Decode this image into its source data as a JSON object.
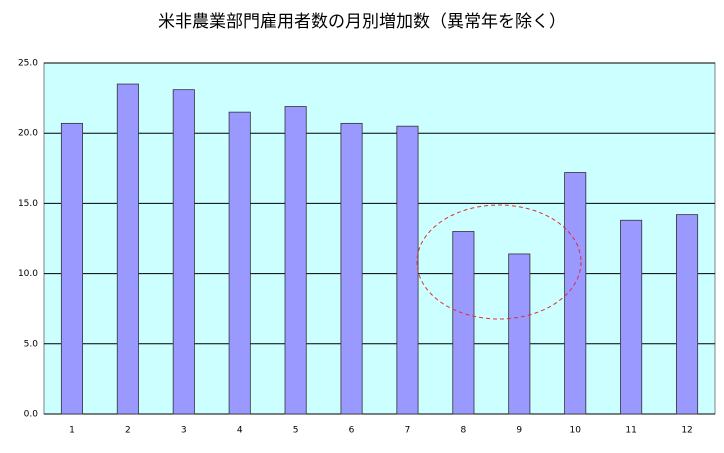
{
  "chart_data": {
    "type": "bar",
    "title": "米非農業部門雇用者数の月別増加数（異常年を除く）",
    "categories": [
      "1",
      "2",
      "3",
      "4",
      "5",
      "6",
      "7",
      "8",
      "9",
      "10",
      "11",
      "12"
    ],
    "values": [
      20.7,
      23.5,
      23.1,
      21.5,
      21.9,
      20.7,
      20.5,
      13.0,
      11.4,
      17.2,
      13.8,
      14.2
    ],
    "color": "#9999ff",
    "ylim": [
      0,
      25
    ],
    "yticks": [
      {
        "value": 0,
        "label": "0.0"
      },
      {
        "value": 5,
        "label": "5.0"
      },
      {
        "value": 10,
        "label": "10.0"
      },
      {
        "value": 15,
        "label": "15.0"
      },
      {
        "value": 20,
        "label": "20.0"
      },
      {
        "value": 25,
        "label": "25.0"
      }
    ],
    "grid": true
  }
}
